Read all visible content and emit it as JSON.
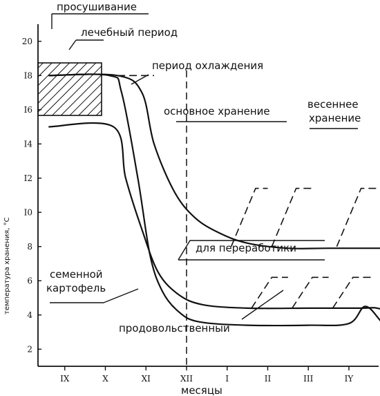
{
  "chart_data": {
    "type": "line",
    "title": "",
    "xlabel": "месяцы",
    "ylabel": "температура хранения, °C",
    "x_ticks": [
      "IX",
      "X",
      "XI",
      "XII",
      "I",
      "II",
      "III",
      "IY"
    ],
    "y_ticks": [
      "2",
      "4",
      "6",
      "8",
      "I0",
      "I2",
      "I4",
      "I6",
      "I8",
      "20"
    ],
    "ylim": [
      1,
      21
    ],
    "grid": false,
    "annotations": [
      "просушивание",
      "лечебный период",
      "период охлаждения",
      "основное хранение",
      "весеннее",
      "хранение",
      "для переработики",
      "семенной",
      "картофель",
      "продовольственный"
    ],
    "series": [
      {
        "label": "для переработики",
        "points": [
          [
            0.6,
            18
          ],
          [
            2.3,
            18
          ],
          [
            2.9,
            17
          ],
          [
            3.2,
            14
          ],
          [
            3.7,
            11.2
          ],
          [
            4.2,
            9.7
          ],
          [
            4.8,
            8.8
          ],
          [
            5.5,
            8.2
          ],
          [
            6.5,
            7.9
          ],
          [
            7.5,
            7.9
          ],
          [
            9.0,
            7.9
          ],
          [
            10.0,
            7.9
          ],
          [
            11.0,
            7.9
          ],
          [
            12.0,
            7.9
          ]
        ]
      },
      {
        "label": "семенной картофель",
        "points": [
          [
            0.6,
            15
          ],
          [
            2.2,
            15
          ],
          [
            2.5,
            12
          ],
          [
            2.9,
            9
          ],
          [
            3.3,
            6.5
          ],
          [
            3.8,
            5.2
          ],
          [
            4.4,
            4.6
          ],
          [
            5.5,
            4.4
          ],
          [
            7.0,
            4.4
          ],
          [
            8.3,
            4.4
          ],
          [
            8.7,
            4.4
          ],
          [
            9.1,
            4.0
          ],
          [
            9.4,
            3.5
          ],
          [
            10.5,
            3.5
          ],
          [
            12.0,
            3.5
          ]
        ]
      },
      {
        "label": "продовольственный",
        "points": [
          [
            0.6,
            18
          ],
          [
            2.1,
            18
          ],
          [
            2.4,
            17
          ],
          [
            2.8,
            12
          ],
          [
            3.1,
            7.5
          ],
          [
            3.4,
            5.4
          ],
          [
            3.8,
            4.2
          ],
          [
            4.3,
            3.6
          ],
          [
            5.5,
            3.4
          ],
          [
            7.0,
            3.4
          ],
          [
            8.0,
            3.5
          ],
          [
            8.4,
            4.5
          ],
          [
            8.8,
            3.6
          ],
          [
            9.2,
            2.5
          ],
          [
            9.6,
            2.2
          ],
          [
            10.0,
            2.2
          ],
          [
            10.5,
            2.5
          ],
          [
            10.6,
            2.0
          ],
          [
            11.0,
            1.7
          ],
          [
            12.0,
            1.7
          ]
        ]
      }
    ],
    "dashed_series": [
      {
        "points": [
          [
            5.1,
            8.0
          ],
          [
            5.7,
            11.4
          ],
          [
            6.0,
            11.4
          ]
        ]
      },
      {
        "points": [
          [
            6.1,
            8.0
          ],
          [
            6.7,
            11.4
          ],
          [
            7.1,
            11.4
          ]
        ]
      },
      {
        "points": [
          [
            7.7,
            8.0
          ],
          [
            8.3,
            11.4
          ],
          [
            8.7,
            11.4
          ]
        ]
      },
      {
        "points": [
          [
            9.0,
            8.0
          ],
          [
            9.4,
            11.4
          ],
          [
            9.8,
            11.4
          ]
        ]
      },
      {
        "points": [
          [
            10.1,
            8.0
          ],
          [
            10.5,
            11.4
          ],
          [
            10.8,
            11.4
          ]
        ]
      },
      {
        "points": [
          [
            5.6,
            4.4
          ],
          [
            6.1,
            6.2
          ],
          [
            6.5,
            6.2
          ]
        ]
      },
      {
        "points": [
          [
            6.6,
            4.4
          ],
          [
            7.1,
            6.2
          ],
          [
            7.5,
            6.2
          ]
        ]
      },
      {
        "points": [
          [
            7.6,
            4.4
          ],
          [
            8.1,
            6.2
          ],
          [
            8.6,
            6.2
          ]
        ]
      },
      {
        "points": [
          [
            10.4,
            2.2
          ],
          [
            11.1,
            3.2
          ],
          [
            12.0,
            4.2
          ]
        ]
      },
      {
        "points": [
          [
            2.3,
            18
          ],
          [
            3.2,
            18
          ]
        ]
      }
    ],
    "vertical_markers": [
      4.0,
      9.0,
      10.5
    ],
    "ranges": [
      {
        "label": "просушивание",
        "x": [
          0.6,
          1.2
        ],
        "y": 20
      },
      {
        "label": "период охлаждения",
        "x": [
          2.3,
          4.0
        ],
        "y": 18
      }
    ]
  }
}
